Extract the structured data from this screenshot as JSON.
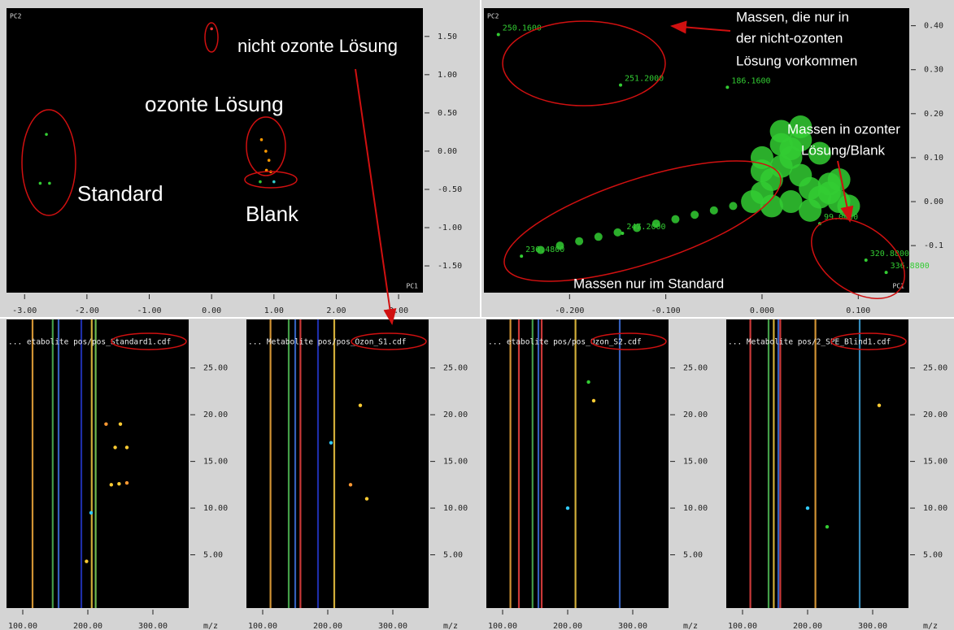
{
  "score_plot": {
    "y_label": "PC2",
    "x_label": "PC1",
    "xlim": [
      -3.29,
      3.39
    ],
    "ylim": [
      -1.85,
      1.87
    ],
    "xticks": [
      {
        "value": -3,
        "label": "-3.00"
      },
      {
        "value": -2,
        "label": "-2.00"
      },
      {
        "value": -1,
        "label": "-1.00"
      },
      {
        "value": 0,
        "label": "0.00"
      },
      {
        "value": 1,
        "label": "1.00"
      },
      {
        "value": 2,
        "label": "2.00"
      },
      {
        "value": 3,
        "label": "3.00"
      }
    ],
    "yticks": [
      {
        "value": 1.5,
        "label": "1.50"
      },
      {
        "value": 1,
        "label": "1.00"
      },
      {
        "value": 0.5,
        "label": "0.50"
      },
      {
        "value": 0,
        "label": "0.00"
      },
      {
        "value": -0.5,
        "label": "-0.50"
      },
      {
        "value": -1,
        "label": "-1.00"
      },
      {
        "value": -1.5,
        "label": "-1.50"
      }
    ],
    "points": {
      "x": [
        -2.65,
        -2.75,
        -2.6,
        0.0,
        0.8,
        0.87,
        0.92,
        0.88,
        0.95,
        0.78,
        1.0
      ],
      "y": [
        0.22,
        -0.42,
        -0.42,
        1.6,
        0.15,
        0.0,
        -0.12,
        -0.25,
        -0.27,
        -0.4,
        -0.4
      ],
      "colors": [
        "#3c3",
        "#3c3",
        "#3c3",
        "#e33",
        "#f90",
        "#f90",
        "#f90",
        "#f90",
        "#f90",
        "#3c3",
        "#3cc"
      ]
    },
    "annotations": [
      "nicht ozonte Lösung",
      "ozonte Lösung",
      "Standard",
      "Blank"
    ]
  },
  "loading_plot": {
    "y_label": "PC2",
    "x_label": "PC1",
    "xlim": [
      -0.289,
      0.153
    ],
    "ylim": [
      -0.207,
      0.44
    ],
    "color": "#3c3",
    "xticks": [
      {
        "value": -0.2,
        "label": "-0.200"
      },
      {
        "value": -0.1,
        "label": "-0.100"
      },
      {
        "value": 0,
        "label": "0.000"
      },
      {
        "value": 0.1,
        "label": "0.100"
      }
    ],
    "yticks": [
      {
        "value": 0.4,
        "label": "0.40"
      },
      {
        "value": 0.3,
        "label": "0.30"
      },
      {
        "value": 0.2,
        "label": "0.20"
      },
      {
        "value": 0.1,
        "label": "0.10"
      },
      {
        "value": 0,
        "label": "0.00"
      },
      -0.1
    ],
    "labeled_points": {
      "labels": [
        "250.1600",
        "251.2000",
        "186.1600",
        "247.2000",
        "99.0400",
        "320.8800",
        "336.8800",
        "236.4800"
      ],
      "x": [
        -0.274,
        -0.147,
        -0.036,
        -0.145,
        0.06,
        0.108,
        0.129,
        -0.25
      ],
      "y": [
        0.38,
        0.265,
        0.26,
        -0.072,
        -0.05,
        -0.133,
        -0.161,
        -0.124
      ]
    },
    "cloud": {
      "x": [
        0.0,
        0.01,
        0.02,
        0.03,
        0.04,
        0.05,
        0.06,
        0.07,
        0.08,
        0.09,
        0.0,
        0.02,
        0.04,
        0.06,
        0.08,
        0.01,
        0.03,
        0.05,
        0.07,
        -0.01,
        -0.03,
        -0.05,
        -0.07,
        -0.09,
        -0.11,
        -0.13,
        -0.15,
        -0.17,
        -0.19,
        -0.21,
        -0.23,
        0.02,
        0.04,
        0.0,
        0.03
      ],
      "y": [
        0.02,
        0.05,
        0.08,
        0.1,
        0.06,
        0.03,
        0.01,
        0.04,
        0.0,
        -0.01,
        0.1,
        0.13,
        0.14,
        0.11,
        0.05,
        -0.01,
        0.0,
        -0.02,
        0.02,
        0.0,
        -0.01,
        -0.02,
        -0.03,
        -0.04,
        -0.05,
        -0.06,
        -0.07,
        -0.08,
        -0.09,
        -0.1,
        -0.11,
        0.16,
        0.17,
        0.07,
        0.12
      ]
    },
    "annotations": [
      "Massen, die nur in",
      "der nicht-ozonten",
      "Lösung vorkommen",
      "Massen in ozonter",
      "Lösung/Blank",
      "Massen nur im Standard"
    ]
  },
  "chromatograms": [
    {
      "file": "... etabolite pos/pos_Standard1.cdf",
      "x_label": "m/z",
      "xlim": [
        75,
        355
      ],
      "ylim": [
        -0.7,
        30.2
      ],
      "xticks": [
        {
          "value": 100,
          "label": "100.00"
        },
        {
          "value": 200,
          "label": "200.00"
        },
        {
          "value": 300,
          "label": "300.00"
        }
      ],
      "yticks": [
        {
          "value": 5,
          "label": "5.00"
        },
        {
          "value": 10,
          "label": "10.00"
        },
        {
          "value": 15,
          "label": "15.00"
        },
        {
          "value": 20,
          "label": "20.00"
        },
        {
          "value": 25,
          "label": "25.00"
        }
      ],
      "traces": {
        "mz": [
          115,
          146,
          155,
          190,
          206,
          212
        ],
        "colors": [
          "#e8a33a",
          "#4caf50",
          "#3a6ad0",
          "#2233bb",
          "#e8c040",
          "#7ccf5a"
        ]
      },
      "spots": {
        "mz": [
          236,
          242,
          228,
          250,
          260,
          260,
          248,
          205,
          198
        ],
        "rt": [
          12.5,
          16.5,
          19,
          19,
          16.5,
          12.7,
          12.6,
          9.5,
          4.3
        ],
        "colors": [
          "#fc3",
          "#fc3",
          "#f93",
          "#fc3",
          "#fc3",
          "#f93",
          "#fc3",
          "#3cf",
          "#fc3"
        ]
      }
    },
    {
      "file": "... Metabolite pos/pos_Ozon_S1.cdf",
      "x_label": "m/z",
      "xlim": [
        75,
        355
      ],
      "ylim": [
        -0.7,
        30.2
      ],
      "xticks": [
        {
          "value": 100,
          "label": "100.00"
        },
        {
          "value": 200,
          "label": "200.00"
        },
        {
          "value": 300,
          "label": "300.00"
        }
      ],
      "yticks": [
        {
          "value": 5,
          "label": "5.00"
        },
        {
          "value": 10,
          "label": "10.00"
        },
        {
          "value": 15,
          "label": "15.00"
        },
        {
          "value": 20,
          "label": "20.00"
        },
        {
          "value": 25,
          "label": "25.00"
        }
      ],
      "traces": {
        "mz": [
          112,
          140,
          150,
          158,
          185,
          210
        ],
        "colors": [
          "#e8a33a",
          "#4caf50",
          "#3a6ad0",
          "#e04040",
          "#2233bb",
          "#e8c040"
        ]
      },
      "spots": {
        "mz": [
          250,
          235,
          260,
          205
        ],
        "rt": [
          21,
          12.5,
          11,
          17
        ],
        "colors": [
          "#fc3",
          "#f93",
          "#fc3",
          "#3cf"
        ]
      }
    },
    {
      "file": "... etabolite pos/pos_Ozon_S2.cdf",
      "x_label": "m/z",
      "xlim": [
        75,
        355
      ],
      "ylim": [
        -0.7,
        30.2
      ],
      "xticks": [
        {
          "value": 100,
          "label": "100.00"
        },
        {
          "value": 200,
          "label": "200.00"
        },
        {
          "value": 300,
          "label": "300.00"
        }
      ],
      "yticks": [
        {
          "value": 5,
          "label": "5.00"
        },
        {
          "value": 10,
          "label": "10.00"
        },
        {
          "value": 15,
          "label": "15.00"
        },
        {
          "value": 20,
          "label": "20.00"
        },
        {
          "value": 25,
          "label": "25.00"
        }
      ],
      "traces": {
        "mz": [
          112,
          125,
          146,
          155,
          160,
          212,
          280
        ],
        "colors": [
          "#e8a33a",
          "#e04040",
          "#4caf50",
          "#3a6ad0",
          "#e04040",
          "#e8c040",
          "#3a6ad0"
        ]
      },
      "spots": {
        "mz": [
          240,
          232,
          200
        ],
        "rt": [
          21.5,
          23.5,
          10
        ],
        "colors": [
          "#fc3",
          "#3c3",
          "#3cf"
        ]
      }
    },
    {
      "file": "... Metabolite pos/2_SPE_Blind1.cdf",
      "x_label": "m/z",
      "xlim": [
        75,
        355
      ],
      "ylim": [
        -0.7,
        30.2
      ],
      "xticks": [
        {
          "value": 100,
          "label": "100.00"
        },
        {
          "value": 200,
          "label": "200.00"
        },
        {
          "value": 300,
          "label": "300.00"
        }
      ],
      "yticks": [
        {
          "value": 5,
          "label": "5.00"
        },
        {
          "value": 10,
          "label": "10.00"
        },
        {
          "value": 15,
          "label": "15.00"
        },
        {
          "value": 20,
          "label": "20.00"
        },
        {
          "value": 25,
          "label": "25.00"
        }
      ],
      "traces": {
        "mz": [
          112,
          140,
          148,
          155,
          158,
          212,
          280
        ],
        "colors": [
          "#e04040",
          "#4caf50",
          "#e8c040",
          "#3a6ad0",
          "#e04040",
          "#e8a33a",
          "#3a9ad0"
        ]
      },
      "spots": {
        "mz": [
          310,
          200,
          230
        ],
        "rt": [
          21,
          10,
          8
        ],
        "colors": [
          "#fc3",
          "#3cf",
          "#3c3"
        ]
      }
    }
  ]
}
